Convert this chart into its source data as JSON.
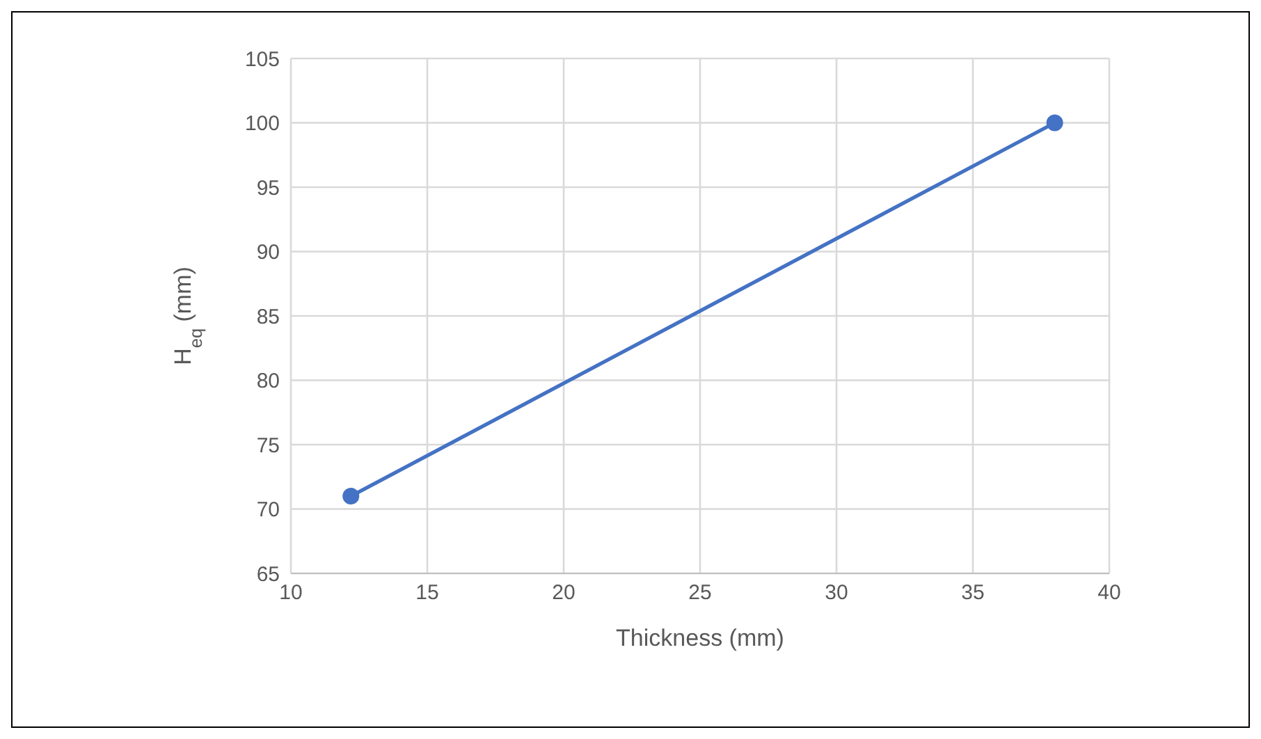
{
  "chart_data": {
    "type": "line",
    "xlabel": "Thickness (mm)",
    "ylabel": "H$_{eq}$ (mm)",
    "x": [
      12.2,
      38
    ],
    "series": [
      {
        "color": "#4472c4",
        "values": [
          71,
          100
        ]
      }
    ],
    "xlim": [
      10,
      40
    ],
    "xticks": [
      10,
      15,
      20,
      25,
      30,
      35,
      40
    ],
    "ylim": [
      65,
      105
    ],
    "yticks": [
      65,
      70,
      75,
      80,
      85,
      90,
      95,
      100,
      105
    ],
    "grid": true,
    "legend": false,
    "marker": "circle",
    "line_style": "solid"
  }
}
